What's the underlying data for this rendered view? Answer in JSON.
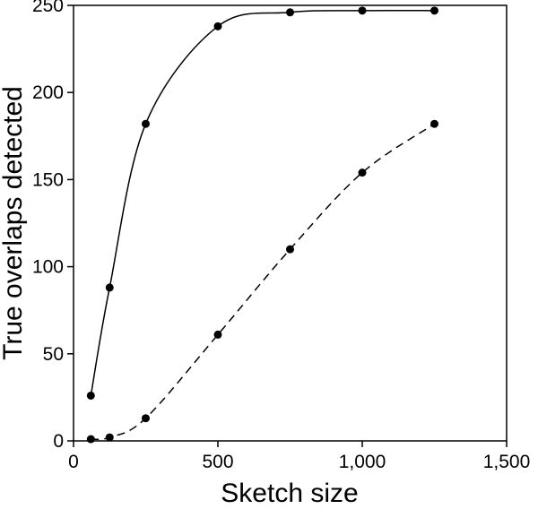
{
  "chart_data": {
    "type": "line",
    "title": "",
    "xlabel": "Sketch size",
    "ylabel": "True overlaps detected",
    "xlim": [
      0,
      1500
    ],
    "ylim": [
      0,
      250
    ],
    "xticks": [
      0,
      500,
      1000,
      1500
    ],
    "xtick_labels": [
      "0",
      "500",
      "1,000",
      "1,500"
    ],
    "yticks": [
      0,
      50,
      100,
      150,
      200,
      250
    ],
    "ytick_labels": [
      "0",
      "50",
      "100",
      "150",
      "200",
      "250"
    ],
    "grid": false,
    "legend": "none",
    "series": [
      {
        "line_style": "solid",
        "color": "#000000",
        "x": [
          60,
          125,
          250,
          500,
          750,
          1000,
          1250
        ],
        "y": [
          26,
          88,
          182,
          238,
          246,
          247,
          247
        ]
      },
      {
        "line_style": "dashed",
        "color": "#000000",
        "x": [
          60,
          125,
          250,
          500,
          750,
          1000,
          1250
        ],
        "y": [
          1,
          2,
          13,
          61,
          110,
          154,
          182
        ]
      }
    ]
  }
}
